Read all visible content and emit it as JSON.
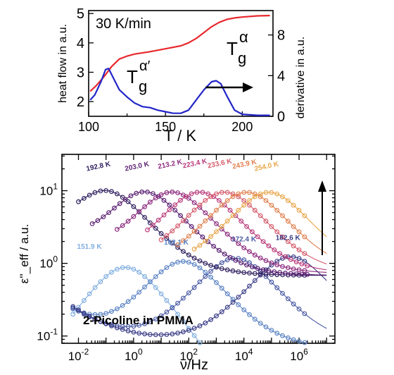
{
  "chart_data": [
    {
      "type": "line",
      "annotation_rate": "30 K/min",
      "xlabel": "T / K",
      "ylabel_left": "heat flow in a.u.",
      "ylabel_right": "derivative in a.u.",
      "xlim": [
        100,
        220
      ],
      "ylim_left": [
        1.5,
        5.1
      ],
      "ylim_right": [
        0,
        10.4
      ],
      "x_ticks": [
        "100",
        "150",
        "200"
      ],
      "y_ticks_left": [
        "2",
        "3",
        "4",
        "5"
      ],
      "y_ticks_right": [
        "0",
        "4",
        "8"
      ],
      "label_alpha": {
        "base": "T",
        "sub": "g",
        "sup": "α"
      },
      "label_alpha_prime": {
        "base": "T",
        "sub": "g",
        "sup": "α′"
      },
      "series": [
        {
          "name": "heat flow",
          "color": "#e8282d",
          "axis": "left",
          "x": [
            101,
            105,
            110,
            115,
            120,
            125,
            130,
            140,
            150,
            160,
            165,
            170,
            175,
            180,
            185,
            190,
            195,
            200,
            210,
            218
          ],
          "y": [
            2.35,
            2.55,
            2.85,
            3.2,
            3.45,
            3.55,
            3.62,
            3.7,
            3.8,
            3.9,
            4.0,
            4.15,
            4.35,
            4.55,
            4.7,
            4.8,
            4.85,
            4.88,
            4.92,
            4.93
          ]
        },
        {
          "name": "derivative",
          "color": "#2226c8",
          "axis": "right",
          "x": [
            101,
            104,
            108,
            111,
            113,
            116,
            120,
            125,
            130,
            135,
            140,
            145,
            150,
            155,
            160,
            165,
            170,
            175,
            180,
            183,
            186,
            190,
            195,
            200,
            210,
            218
          ],
          "y": [
            1.6,
            2.1,
            3.4,
            4.6,
            4.7,
            3.8,
            2.6,
            1.9,
            1.3,
            0.95,
            0.85,
            0.6,
            0.45,
            0.3,
            0.3,
            0.6,
            1.6,
            2.6,
            3.4,
            3.5,
            3.2,
            2.0,
            0.6,
            0.2,
            0.1,
            0.1
          ]
        }
      ],
      "arrow": "right"
    },
    {
      "type": "scatter",
      "title": "2-Picoline in PMMA",
      "xlabel": "ν/Hz",
      "ylabel": "ε''_eff / a.u.",
      "x_scale": "log",
      "y_scale": "log",
      "xlim_log10": [
        -2.6,
        7.3
      ],
      "ylim_log10": [
        -1.1,
        1.5
      ],
      "x_ticks": [
        {
          "base": "10",
          "exp": "-2",
          "log": -2
        },
        {
          "base": "10",
          "exp": "0",
          "log": 0
        },
        {
          "base": "10",
          "exp": "2",
          "log": 2
        },
        {
          "base": "10",
          "exp": "4",
          "log": 4
        },
        {
          "base": "10",
          "exp": "6",
          "log": 6
        }
      ],
      "y_ticks": [
        {
          "base": "10",
          "exp": "-1",
          "log": -1
        },
        {
          "base": "10",
          "exp": "0",
          "log": 0
        },
        {
          "base": "10",
          "exp": "1",
          "log": 1
        }
      ],
      "arrow": "up",
      "series": [
        {
          "name": "151.9 K",
          "color": "#80aee0",
          "amp": 1.6,
          "logfpk": -0.3,
          "base": 0.0,
          "xmin": -2.2,
          "xmax": 7.0,
          "label_at": [
            -2.05,
            0.2
          ]
        },
        {
          "name": "162.1 K",
          "color": "#5b83c4",
          "amp": 1.8,
          "logfpk": 1.8,
          "base": 0.34,
          "xmin": -2.2,
          "xmax": 7.0,
          "label_at": [
            1.1,
            0.26
          ]
        },
        {
          "name": "172.4 K",
          "color": "#4a5aa4",
          "amp": 2.0,
          "logfpk": 3.7,
          "base": 0.38,
          "xmin": -2.2,
          "xmax": 7.0,
          "label_at": [
            3.55,
            0.3
          ]
        },
        {
          "name": "182.6 K",
          "color": "#3a3c86",
          "amp": 2.1,
          "logfpk": 5.7,
          "base": 0.4,
          "xmin": -2.2,
          "xmax": 7.0,
          "label_at": [
            5.15,
            0.32
          ]
        },
        {
          "name": "192.8 K",
          "color": "#2e1f5e",
          "amp": 16,
          "logfpk": -1.0,
          "base": 3.4,
          "xmin": -2.0,
          "xmax": 7.0,
          "label_at": [
            -1.7,
            1.27
          ]
        },
        {
          "name": "203.0 K",
          "color": "#5a1f72",
          "amp": 16,
          "logfpk": 0.4,
          "base": 3.4,
          "xmin": -1.5,
          "xmax": 7.0,
          "label_at": [
            -0.3,
            1.27
          ]
        },
        {
          "name": "213.2 K",
          "color": "#8c2a7e",
          "amp": 16,
          "logfpk": 1.4,
          "base": 3.6,
          "xmin": -0.6,
          "xmax": 7.0,
          "label_at": [
            0.9,
            1.3
          ]
        },
        {
          "name": "223.4 K",
          "color": "#b93a7a",
          "amp": 16,
          "logfpk": 2.4,
          "base": 3.6,
          "xmin": 0.5,
          "xmax": 7.0,
          "label_at": [
            1.8,
            1.31
          ]
        },
        {
          "name": "233.6 K",
          "color": "#d55a6a",
          "amp": 16,
          "logfpk": 3.3,
          "base": 3.6,
          "xmin": 1.0,
          "xmax": 7.0,
          "label_at": [
            2.7,
            1.31
          ]
        },
        {
          "name": "243.9 K",
          "color": "#e0804e",
          "amp": 16,
          "logfpk": 4.1,
          "base": 3.6,
          "xmin": 1.6,
          "xmax": 7.0,
          "label_at": [
            3.6,
            1.3
          ]
        },
        {
          "name": "254.0 K",
          "color": "#e8a64a",
          "amp": 16,
          "logfpk": 4.9,
          "base": 3.6,
          "xmin": 2.2,
          "xmax": 7.0,
          "label_at": [
            4.4,
            1.27
          ]
        }
      ]
    }
  ]
}
